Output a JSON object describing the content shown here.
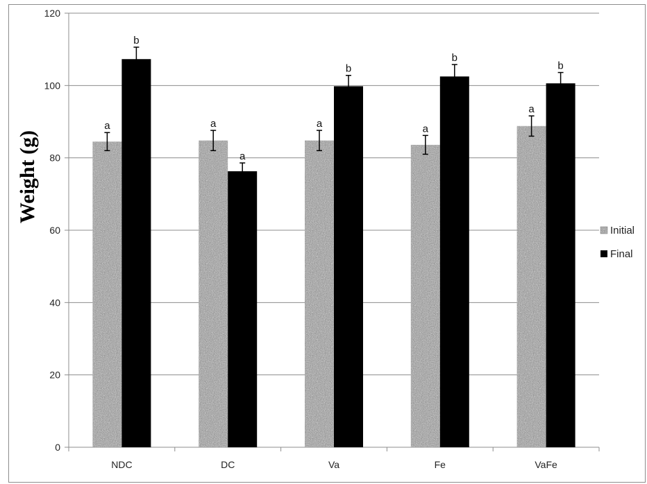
{
  "chart_data": {
    "type": "bar",
    "title": "",
    "xlabel": "",
    "ylabel": "Weight (g)",
    "ylim": [
      0,
      120
    ],
    "yticks": [
      0,
      20,
      40,
      60,
      80,
      100,
      120
    ],
    "grid": "horizontal",
    "legend_position": "right",
    "categories": [
      "NDC",
      "DC",
      "Va",
      "Fe",
      "VaFe"
    ],
    "series": [
      {
        "name": "Initial",
        "pattern": "granite-speckle",
        "color": "#9a9a9a",
        "values": [
          84.5,
          84.8,
          84.8,
          83.6,
          88.8
        ],
        "error": [
          2.5,
          2.8,
          2.8,
          2.6,
          2.8
        ],
        "letters": [
          "a",
          "a",
          "a",
          "a",
          "a"
        ]
      },
      {
        "name": "Final",
        "color": "#000000",
        "values": [
          107.3,
          76.3,
          99.8,
          102.5,
          100.6
        ],
        "error": [
          3.3,
          2.3,
          3.0,
          3.3,
          3.0
        ],
        "letters": [
          "b",
          "a",
          "b",
          "b",
          "b"
        ]
      }
    ]
  }
}
